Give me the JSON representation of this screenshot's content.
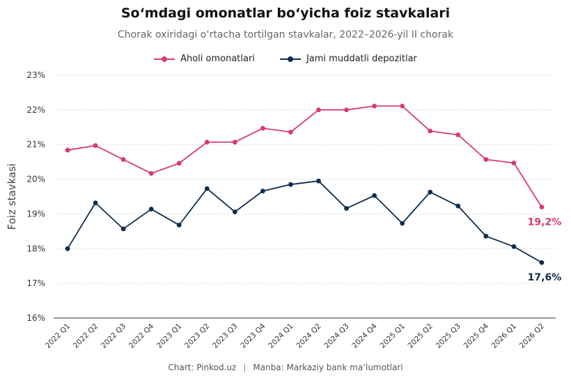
{
  "chart_data": {
    "type": "line",
    "title": "So‘mdagi omonatlar bo‘yicha foiz stavkalari",
    "subtitle": "Chorak oxiridagi o‘rtacha tortilgan stavkalar, 2022–2026-yil II chorak",
    "ylabel": "Foiz stavkasi",
    "xlabel": "",
    "ylim": [
      16,
      23
    ],
    "yticks": [
      "16%",
      "17%",
      "18%",
      "19%",
      "20%",
      "21%",
      "22%",
      "23%"
    ],
    "grid": true,
    "legend_position": "top-center",
    "categories": [
      "2022 Q1",
      "2022 Q2",
      "2022 Q3",
      "2022 Q4",
      "2023 Q1",
      "2023 Q2",
      "2023 Q3",
      "2023 Q4",
      "2024 Q1",
      "2024 Q2",
      "2024 Q3",
      "2024 Q4",
      "2025 Q1",
      "2025 Q2",
      "2025 Q3",
      "2025 Q4",
      "2026 Q1",
      "2026 Q2"
    ],
    "series": [
      {
        "name": "Aholi omonatlari",
        "color": "#d63c6b",
        "values": [
          20.84,
          20.97,
          20.57,
          20.17,
          20.46,
          21.07,
          21.07,
          21.47,
          21.36,
          22.0,
          22.0,
          22.11,
          22.11,
          21.39,
          21.28,
          20.57,
          20.47,
          19.2
        ],
        "end_label": "19,2%"
      },
      {
        "name": "Jami muddatli depozitlar",
        "color": "#0f2d4f",
        "values": [
          18.0,
          19.32,
          18.57,
          19.14,
          18.68,
          19.73,
          19.06,
          19.66,
          19.85,
          19.95,
          19.16,
          19.53,
          18.73,
          19.63,
          19.23,
          18.36,
          18.06,
          17.6
        ],
        "end_label": "17,6%"
      }
    ]
  },
  "footer": {
    "chart_credit": "Chart: Pinkod.uz",
    "separator": "|",
    "source": "Manba: Markaziy bank ma’lumotlari"
  }
}
